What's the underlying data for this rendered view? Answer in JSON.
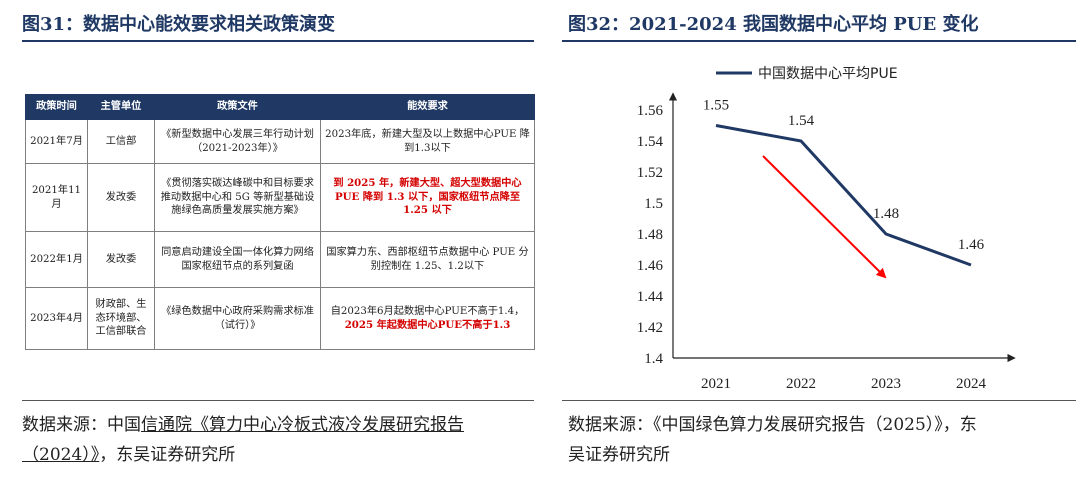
{
  "left_figure": {
    "title": "图31：数据中心能效要求相关政策演变",
    "table": {
      "headers": [
        "政策时间",
        "主管单位",
        "政策文件",
        "能效要求"
      ],
      "rows": [
        {
          "time": "2021年7月",
          "dept": "工信部",
          "doc": "《新型数据中心发展三年行动计划（2021-2023年）》",
          "req_plain": "2023年底，新建大型及以上数据中心PUE 降到1.3以下",
          "req_red": ""
        },
        {
          "time": "2021年11月",
          "dept": "发改委",
          "doc": "《贯彻落实碳达峰碳中和目标要求 推动数据中心和 5G 等新型基础设施绿色高质量发展实施方案》",
          "req_plain": "",
          "req_red": "到 2025 年，新建大型、超大型数据中心 PUE 降到 1.3 以下，国家枢纽节点降至 1.25 以下"
        },
        {
          "time": "2022年1月",
          "dept": "发改委",
          "doc": "同意启动建设全国一体化算力网络国家枢纽节点的系列复函",
          "req_plain": "国家算力东、西部枢纽节点数据中心 PUE 分别控制在 1.25、1.2以下",
          "req_red": ""
        },
        {
          "time": "2023年4月",
          "dept": "财政部、生态环境部、工信部联合",
          "doc": "《绿色数据中心政府采购需求标准（试行）》",
          "req_plain": "自2023年6月起数据中心PUE不高于1.4，",
          "req_red": "2025 年起数据中心PUE不高于1.3"
        }
      ]
    },
    "source": {
      "prefix": "数据来源：中国",
      "link": "信通院《算力中心冷板式液冷发展研究报告（2024）》",
      "suffix": "，东吴证券研究所"
    }
  },
  "right_figure": {
    "title": "图32：2021-2024 我国数据中心平均 PUE 变化",
    "source": "数据来源：《中国绿色算力发展研究报告（2025）》，东吴证券研究所"
  },
  "colors": {
    "header_bg": "#1f3864",
    "series_line": "#1f3864",
    "arrow": "#ff0000",
    "emphasis_text": "#d40000"
  },
  "chart_data": {
    "type": "line",
    "title": "",
    "xlabel": "",
    "ylabel": "",
    "categories": [
      "2021",
      "2022",
      "2023",
      "2024"
    ],
    "series": [
      {
        "name": "中国数据中心平均PUE",
        "values": [
          1.55,
          1.54,
          1.48,
          1.46
        ]
      }
    ],
    "data_labels": [
      "1.55",
      "1.54",
      "1.48",
      "1.46"
    ],
    "yticks": [
      "1.4",
      "1.42",
      "1.44",
      "1.46",
      "1.48",
      "1.5",
      "1.52",
      "1.54",
      "1.56"
    ],
    "ylim": [
      1.4,
      1.56
    ],
    "grid": false,
    "legend": "top",
    "annotation": "red downward trend arrow"
  }
}
